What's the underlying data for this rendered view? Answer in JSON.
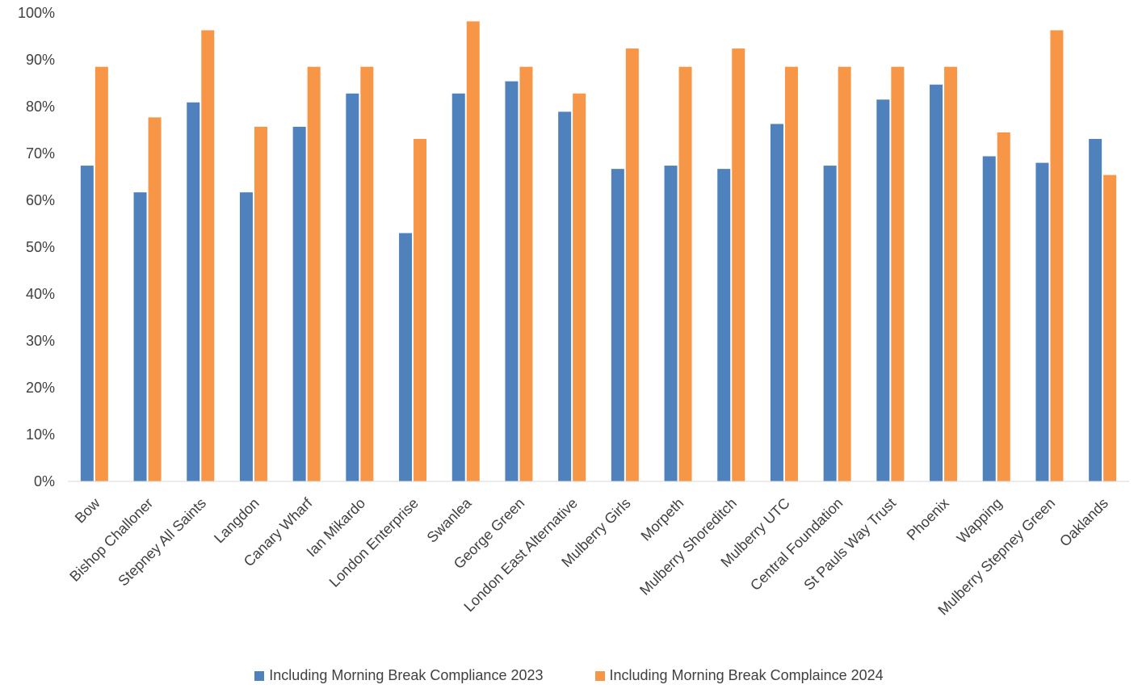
{
  "chart_data": {
    "type": "bar",
    "title": "",
    "xlabel": "",
    "ylabel": "",
    "ylim": [
      0,
      1
    ],
    "yticks": [
      "0%",
      "10%",
      "20%",
      "30%",
      "40%",
      "50%",
      "60%",
      "70%",
      "80%",
      "90%",
      "100%"
    ],
    "grid": false,
    "legend_position": "bottom",
    "categories": [
      "Bow",
      "Bishop Challoner",
      "Stepney All Saints",
      "Langdon",
      "Canary Wharf",
      "Ian Mikardo",
      "London Enterprise",
      "Swanlea",
      "George Green",
      "London East Alternative",
      "Mulberry Girls",
      "Morpeth",
      "Mulberry Shoreditch",
      "Mulberry UTC",
      "Central Foundation",
      "St Pauls Way Trust",
      "Phoenix",
      "Wapping",
      "Mulberry Stepney Green",
      "Oaklands"
    ],
    "series": [
      {
        "name": "Including Morning Break Compliance 2023",
        "color": "#4F81BD",
        "values": [
          0.674,
          0.617,
          0.809,
          0.617,
          0.757,
          0.828,
          0.53,
          0.828,
          0.854,
          0.789,
          0.667,
          0.674,
          0.667,
          0.763,
          0.674,
          0.815,
          0.847,
          0.694,
          0.68,
          0.731
        ]
      },
      {
        "name": "Including Morning Break Complaince 2024",
        "color": "#F79646",
        "values": [
          0.885,
          0.777,
          0.963,
          0.757,
          0.885,
          0.885,
          0.731,
          0.982,
          0.885,
          0.828,
          0.924,
          0.885,
          0.924,
          0.885,
          0.885,
          0.885,
          0.885,
          0.745,
          0.963,
          0.654
        ]
      }
    ]
  }
}
